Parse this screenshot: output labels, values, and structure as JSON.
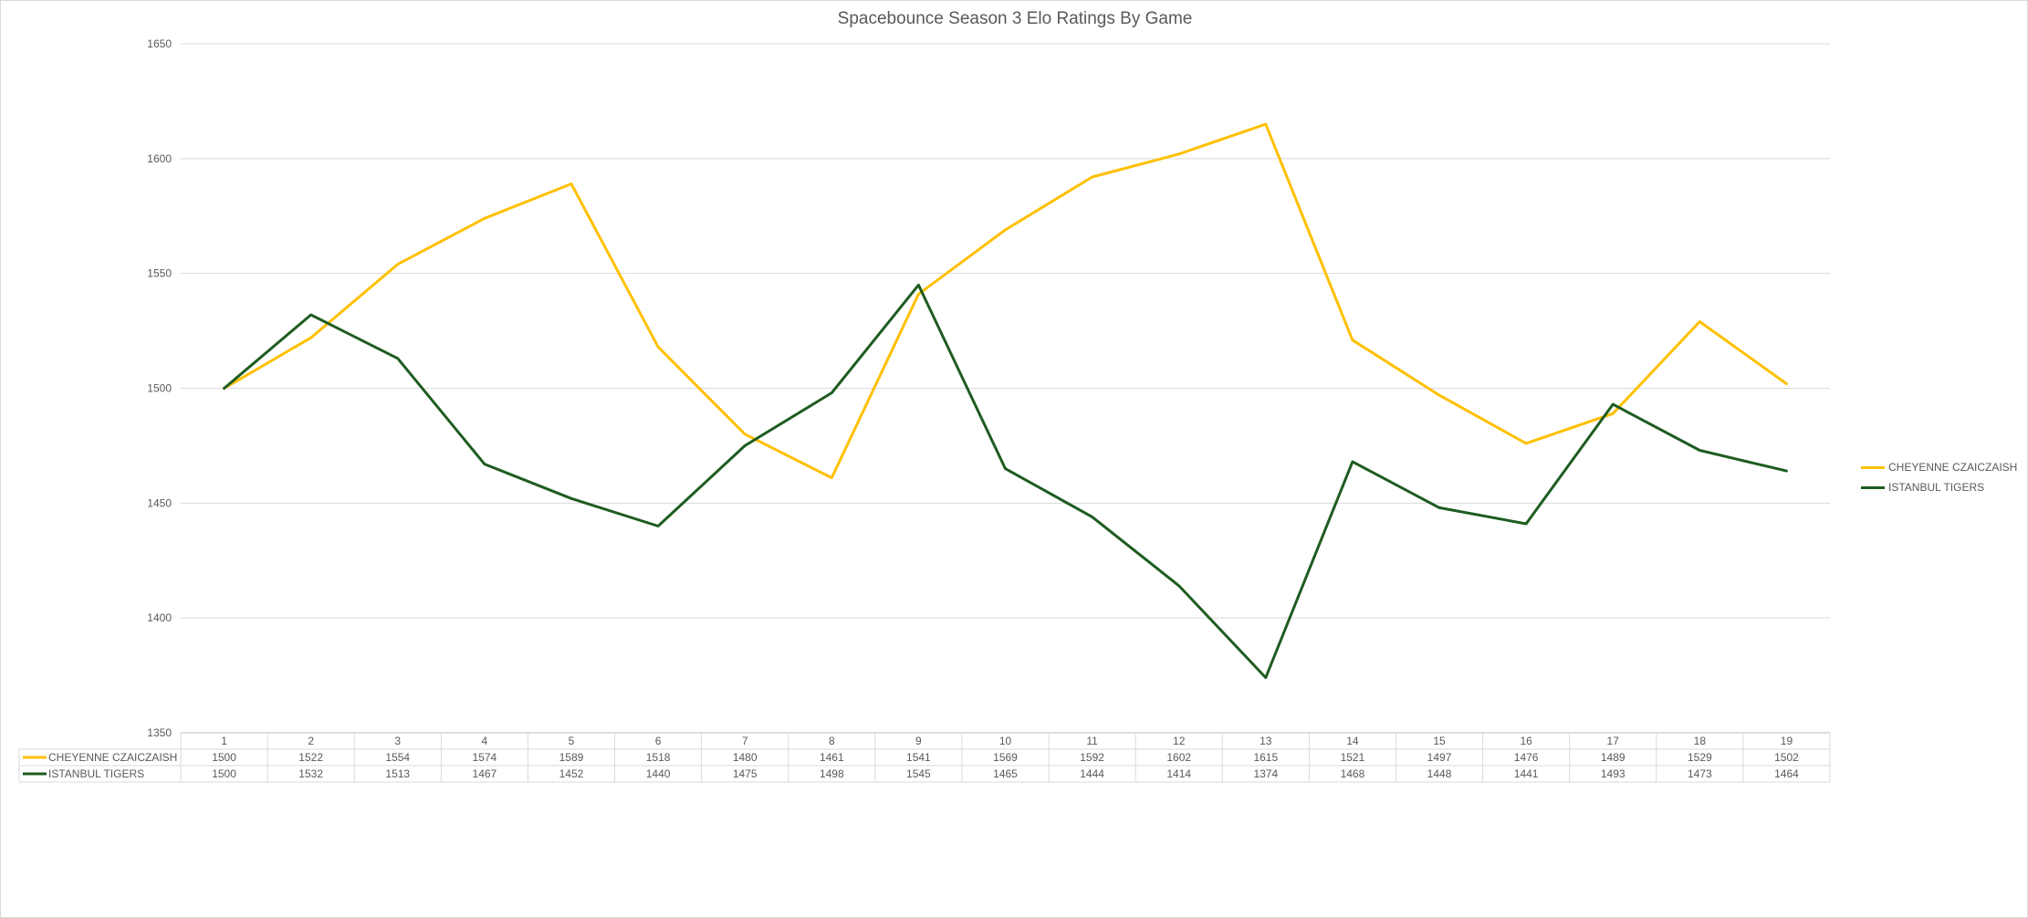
{
  "chart_data": {
    "type": "line",
    "title": "Spacebounce Season 3 Elo Ratings By Game",
    "xlabel": "",
    "ylabel": "",
    "categories": [
      "1",
      "2",
      "3",
      "4",
      "5",
      "6",
      "7",
      "8",
      "9",
      "10",
      "11",
      "12",
      "13",
      "14",
      "15",
      "16",
      "17",
      "18",
      "19"
    ],
    "ylim": [
      1350,
      1650
    ],
    "yticks": [
      1350,
      1400,
      1450,
      1500,
      1550,
      1600,
      1650
    ],
    "grid": true,
    "legend_position": "right",
    "data_table": true,
    "series": [
      {
        "name": "CHEYENNE CZAICZAISH",
        "color": "#FFC000",
        "values": [
          1500,
          1522,
          1554,
          1574,
          1589,
          1518,
          1480,
          1461,
          1541,
          1569,
          1592,
          1602,
          1615,
          1521,
          1497,
          1476,
          1489,
          1529,
          1502
        ]
      },
      {
        "name": "ISTANBUL TIGERS",
        "color": "#1E5C20",
        "values": [
          1500,
          1532,
          1513,
          1467,
          1452,
          1440,
          1475,
          1498,
          1545,
          1465,
          1444,
          1414,
          1374,
          1468,
          1448,
          1441,
          1493,
          1473,
          1464
        ]
      }
    ]
  }
}
